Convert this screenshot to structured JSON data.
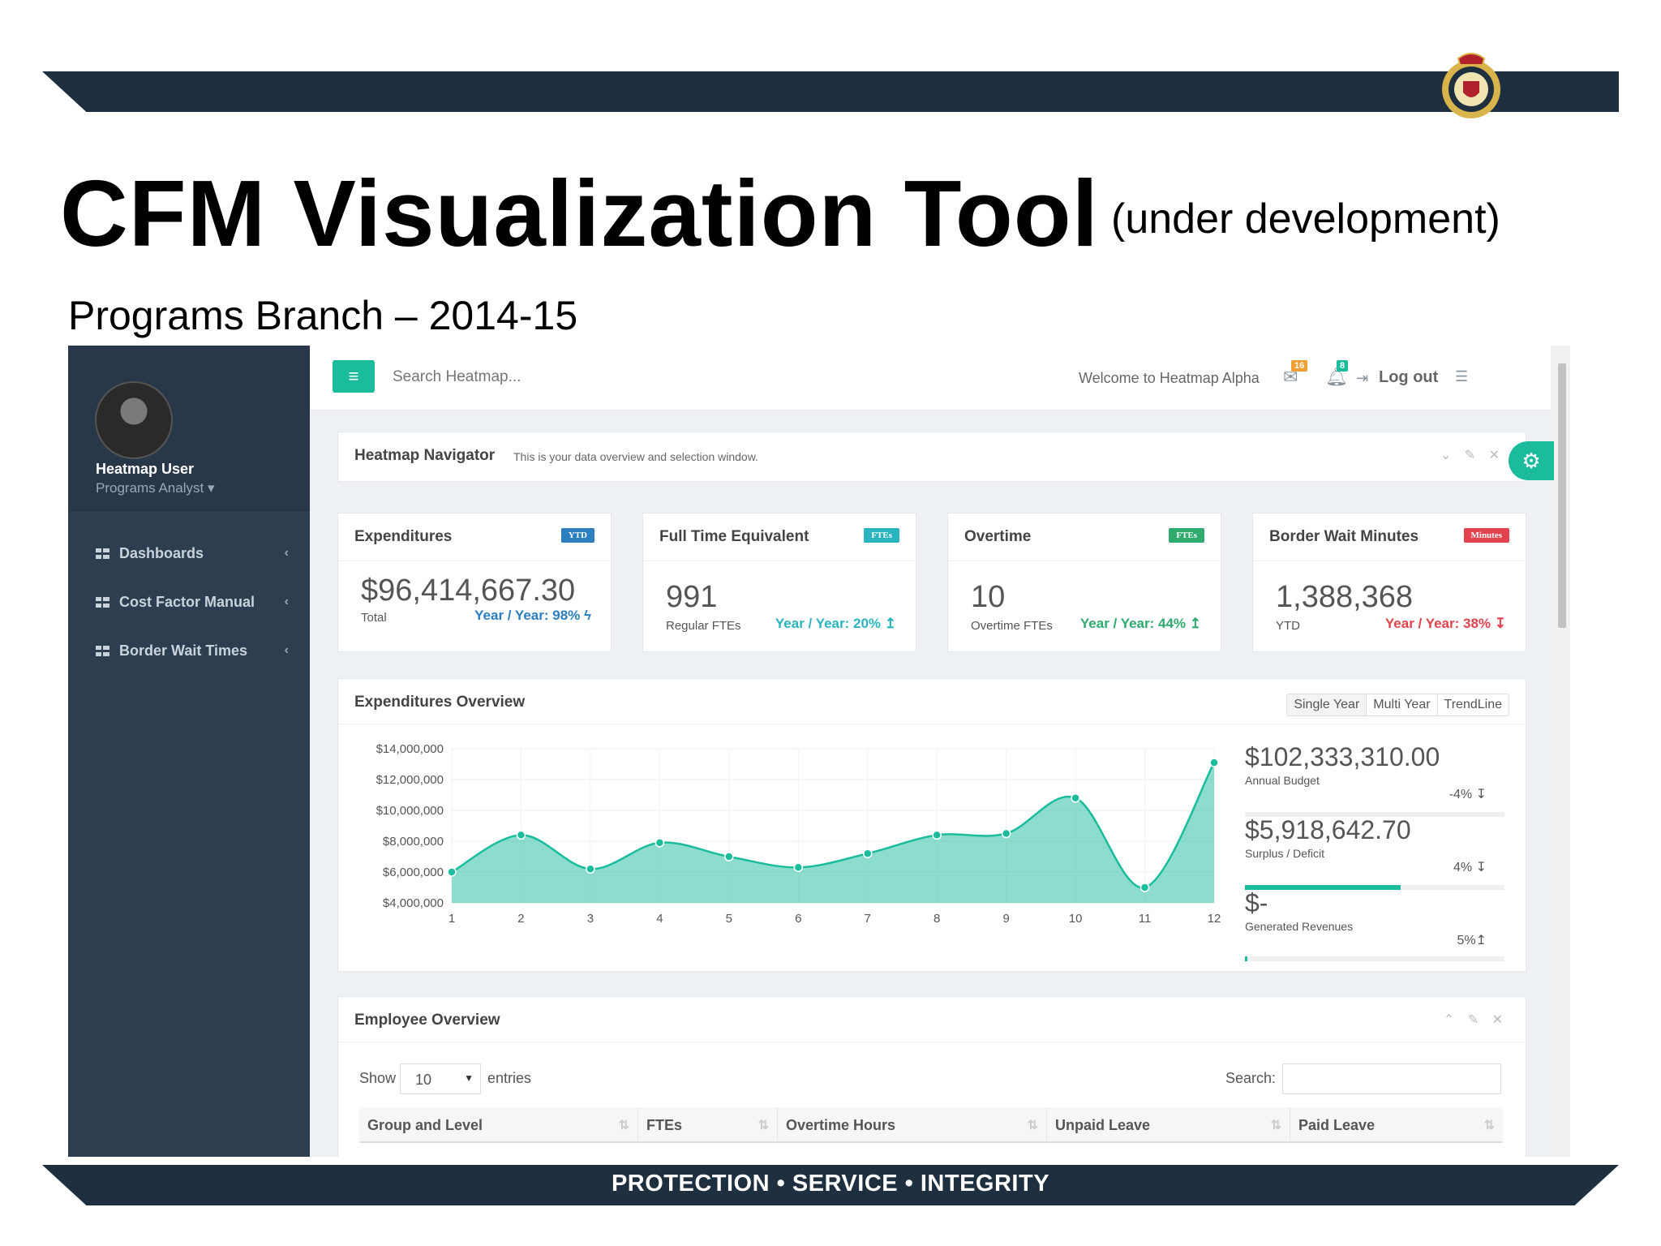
{
  "slide": {
    "title": "CFM Visualization Tool",
    "subtitle": "(under development)",
    "heading": "Programs Branch – 2014-15",
    "footer": "PROTECTION • SERVICE • INTEGRITY"
  },
  "colors": {
    "band": "#1e2f3f",
    "sidebar": "#2c3e50",
    "accent": "#1abc9c",
    "blue": "#2a7fc1",
    "teal": "#2ab4c0",
    "green": "#2eaa6f",
    "red": "#e0434e"
  },
  "sidebar": {
    "user_name": "Heatmap User",
    "user_role": "Programs Analyst ▾",
    "items": [
      {
        "label": "Dashboards",
        "icon": "grid-icon"
      },
      {
        "label": "Cost Factor Manual",
        "icon": "grid-icon"
      },
      {
        "label": "Border Wait Times",
        "icon": "grid-icon"
      }
    ]
  },
  "topbar": {
    "menu_icon": "≡",
    "search_placeholder": "Search Heatmap...",
    "welcome": "Welcome to Heatmap Alpha",
    "mail_badge": "16",
    "bell_badge": "8",
    "logout": "Log out"
  },
  "navigator": {
    "title": "Heatmap Navigator",
    "description": "This is your data overview and selection window."
  },
  "stats": [
    {
      "title": "Expenditures",
      "tag": "YTD",
      "tag_color": "#2a7fc1",
      "value": "$96,414,667.30",
      "label": "Total",
      "trend": "Year / Year: 98% ϟ",
      "trend_color": "#2a7fc1"
    },
    {
      "title": "Full Time Equivalent",
      "tag": "FTEs",
      "tag_color": "#2ab4c0",
      "value": "991",
      "label": "Regular FTEs",
      "trend": "Year / Year: 20% ↥",
      "trend_color": "#2ab4c0"
    },
    {
      "title": "Overtime",
      "tag": "FTEs",
      "tag_color": "#2eaa6f",
      "value": "10",
      "label": "Overtime FTEs",
      "trend": "Year / Year: 44% ↥",
      "trend_color": "#2eaa6f"
    },
    {
      "title": "Border Wait Minutes",
      "tag": "Minutes",
      "tag_color": "#e0434e",
      "value": "1,388,368",
      "label": "YTD",
      "trend": "Year / Year: 38% ↧",
      "trend_color": "#e0434e"
    }
  ],
  "overview": {
    "title": "Expenditures Overview",
    "segments": [
      "Single Year",
      "Multi Year",
      "TrendLine"
    ],
    "kpis": [
      {
        "value": "$102,333,310.00",
        "label": "Annual Budget",
        "pct": "-4% ↧",
        "fill": 0
      },
      {
        "value": "$5,918,642.70",
        "label": "Surplus / Deficit",
        "pct": "4% ↧",
        "fill": 0.6
      },
      {
        "value": "$-",
        "label": "Generated Revenues",
        "pct": "5%↥",
        "fill": 0.01
      }
    ]
  },
  "chart_data": {
    "type": "area",
    "x": [
      1,
      2,
      3,
      4,
      5,
      6,
      7,
      8,
      9,
      10,
      11,
      12
    ],
    "values": [
      6000000,
      8400000,
      6200000,
      7900000,
      7000000,
      6300000,
      7200000,
      8400000,
      8500000,
      10800000,
      5000000,
      13100000
    ],
    "ylim": [
      4000000,
      14000000
    ],
    "yticks": [
      "$14,000,000",
      "$12,000,000",
      "$10,000,000",
      "$8,000,000",
      "$6,000,000",
      "$4,000,000"
    ],
    "ytick_values": [
      14000000,
      12000000,
      10000000,
      8000000,
      6000000,
      4000000
    ],
    "color": "#1abc9c",
    "grid": true
  },
  "employees": {
    "title": "Employee Overview",
    "show": "Show",
    "entries_value": "10",
    "entries": "entries",
    "search_label": "Search:",
    "columns": [
      "Group and Level",
      "FTEs",
      "Overtime Hours",
      "Unpaid Leave",
      "Paid Leave"
    ]
  }
}
